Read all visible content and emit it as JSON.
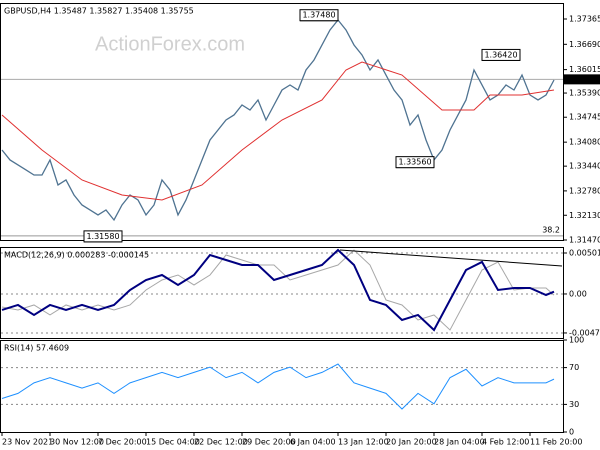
{
  "chart_data": [
    {
      "type": "line",
      "title": "GBPUSD,H4 1.35487 1.35827 1.35408 1.35755",
      "watermark": "ActionForex.com",
      "ylim": [
        1.3147,
        1.37792
      ],
      "yticks": [
        1.37365,
        {
          "value": 1.3669,
          "label": "1.36690"
        },
        1.36015,
        {
          "value": 1.3539,
          "label": "1.35390"
        },
        1.34745,
        {
          "value": 1.3408,
          "label": "1.34080"
        },
        {
          "value": 1.3344,
          "label": "1.33440"
        },
        {
          "value": 1.3278,
          "label": "1.32780"
        },
        {
          "value": 1.3213,
          "label": "1.32130"
        },
        {
          "value": 1.3147,
          "label": "1.31470"
        }
      ],
      "last_price": 1.35755,
      "fib_label": "38.2",
      "annotations": [
        {
          "value": 1.3748,
          "label": "1.37480",
          "index": 42
        },
        {
          "value": 1.3642,
          "label": "1.36420",
          "index": 60
        },
        {
          "value": 1.3356,
          "label": "1.33560",
          "index": 54
        },
        {
          "value": 1.3158,
          "label": "1.31580",
          "index": 15
        }
      ],
      "series": [
        {
          "name": "GBPUSD",
          "color": "#4f7391",
          "values": [
            1.33871,
            1.33605,
            1.33471,
            1.33338,
            1.33204,
            1.33204,
            1.33605,
            1.32938,
            1.33071,
            1.32671,
            1.32404,
            1.32271,
            1.32138,
            1.32271,
            1.32004,
            1.32404,
            1.32671,
            1.32538,
            1.32138,
            1.32404,
            1.33071,
            1.32804,
            1.32138,
            1.32538,
            1.33071,
            1.33605,
            1.34138,
            1.34405,
            1.34671,
            1.34805,
            1.35071,
            1.34938,
            1.35205,
            1.34671,
            1.35071,
            1.35471,
            1.35605,
            1.35471,
            1.36005,
            1.36272,
            1.36672,
            1.37072,
            1.37338,
            1.37072,
            1.36672,
            1.36405,
            1.36005,
            1.36272,
            1.35871,
            1.35471,
            1.35205,
            1.34538,
            1.34805,
            1.34138,
            1.33605,
            1.33871,
            1.34405,
            1.34805,
            1.35205,
            1.36005,
            1.35605,
            1.35205,
            1.35338,
            1.35605,
            1.35471,
            1.35871,
            1.35338,
            1.35205,
            1.35338,
            1.35738
          ]
        },
        {
          "name": "MA",
          "color": "#e03030",
          "x": [
            0,
            5,
            10,
            15,
            20,
            25,
            30,
            35,
            40,
            43,
            45,
            50,
            55,
            59,
            61,
            65,
            69
          ],
          "values": [
            1.34805,
            1.33871,
            1.33071,
            1.32671,
            1.32538,
            1.32938,
            1.33871,
            1.34671,
            1.35205,
            1.36005,
            1.36218,
            1.35871,
            1.34938,
            1.34938,
            1.35338,
            1.35338,
            1.35471
          ]
        }
      ]
    },
    {
      "type": "line",
      "title": "MACD(12,26,9) 0.000283 -0.000145",
      "ylim": [
        -0.00539,
        0.00575
      ],
      "yticks": [
        0.005015,
        {
          "value": 0,
          "label": "0.00"
        },
        -0.004773
      ],
      "series": [
        {
          "name": "Signal",
          "color": "#a8a8a8",
          "x": [
            0,
            2,
            4,
            6,
            8,
            10,
            12,
            14,
            16,
            18,
            20,
            22,
            24,
            26,
            28,
            30,
            32,
            34,
            36,
            38,
            40,
            42,
            44,
            46,
            48,
            50,
            52,
            54,
            56,
            58,
            60,
            62,
            64,
            66,
            68,
            69
          ],
          "values": [
            -0.0016,
            -0.001959,
            -0.001347,
            -0.002571,
            -0.001347,
            -0.001959,
            -0.001347,
            -0.001959,
            -0.001347,
            0.000488,
            0.001712,
            0.002323,
            0.0011,
            0.002323,
            0.00477,
            0.004159,
            0.003547,
            0.003547,
            0.001712,
            0.002323,
            0.002935,
            0.003547,
            0.005382,
            0.003547,
            -0.000735,
            -0.001347,
            -0.003182,
            -0.002571,
            -0.004406,
            -0.000735,
            0.002935,
            0.003914,
            0.000488,
            0.000733,
            0.000733,
            -0.000145
          ]
        },
        {
          "name": "MACD",
          "color": "#000080",
          "x": [
            0,
            2,
            4,
            6,
            8,
            10,
            12,
            14,
            16,
            18,
            20,
            22,
            24,
            26,
            28,
            30,
            32,
            34,
            36,
            38,
            40,
            42,
            44,
            46,
            48,
            50,
            52,
            54,
            56,
            58,
            60,
            62,
            64,
            66,
            68,
            69
          ],
          "values": [
            -0.001959,
            -0.001347,
            -0.002571,
            -0.001347,
            -0.001959,
            -0.001347,
            -0.001959,
            -0.001347,
            0.000488,
            0.001712,
            0.002323,
            0.0011,
            0.002323,
            0.00477,
            0.004159,
            0.003547,
            0.003547,
            0.001712,
            0.002323,
            0.002935,
            0.003547,
            0.005382,
            0.003547,
            -0.000735,
            -0.001347,
            -0.003182,
            -0.002571,
            -0.004406,
            -0.000735,
            0.002935,
            0.003914,
            0.000488,
            0.000733,
            0.000733,
            -0.000124,
            0.000283
          ]
        }
      ]
    },
    {
      "type": "line",
      "title": "RSI(14) 57.4609",
      "ylim": [
        0,
        100
      ],
      "yticks": [
        100,
        70,
        30,
        0
      ],
      "categories": [
        "23 Nov 2021",
        null,
        null,
        null,
        null,
        null,
        "30 Nov 12:00",
        null,
        null,
        null,
        null,
        null,
        "7 Dec 20:00",
        null,
        null,
        null,
        null,
        null,
        "15 Dec 04:00",
        null,
        null,
        null,
        null,
        null,
        "22 Dec 12:00",
        null,
        null,
        null,
        null,
        null,
        "29 Dec 20:00",
        null,
        null,
        null,
        null,
        null,
        "6 Jan 04:00",
        null,
        null,
        null,
        null,
        null,
        "13 Jan 12:00",
        null,
        null,
        null,
        null,
        null,
        "20 Jan 20:00",
        null,
        null,
        null,
        null,
        null,
        "28 Jan 04:00",
        null,
        null,
        null,
        null,
        null,
        "4 Feb 12:00",
        null,
        null,
        null,
        null,
        null,
        "11 Feb 20:00",
        null,
        null,
        null
      ],
      "series": [
        {
          "name": "RSI",
          "color": "#1e90ff",
          "x": [
            0,
            2,
            4,
            6,
            8,
            10,
            12,
            14,
            16,
            18,
            20,
            22,
            24,
            26,
            28,
            30,
            32,
            34,
            36,
            38,
            40,
            42,
            44,
            46,
            48,
            50,
            52,
            54,
            56,
            58,
            60,
            62,
            64,
            66,
            68,
            69
          ],
          "values": [
            36.4,
            42.0,
            53.4,
            59.1,
            53.4,
            47.7,
            53.4,
            42.0,
            53.4,
            59.1,
            64.8,
            59.1,
            64.8,
            70.5,
            59.1,
            64.8,
            53.4,
            64.8,
            70.5,
            59.1,
            64.8,
            73.9,
            53.4,
            47.7,
            42.0,
            25.0,
            42.0,
            30.7,
            59.1,
            68.2,
            50.0,
            59.1,
            53.4,
            53.4,
            53.4,
            57.4609
          ]
        }
      ]
    }
  ]
}
